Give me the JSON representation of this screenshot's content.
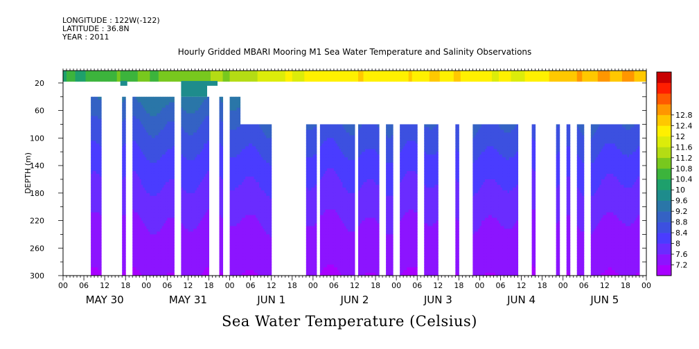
{
  "header": {
    "longitude": "LONGITUDE : 122W(-122)",
    "latitude": "LATITUDE : 36.8N",
    "year": "YEAR : 2011"
  },
  "footer": {
    "title": "Sea Water Temperature (Celsius)"
  },
  "chart_data": {
    "type": "heatmap",
    "title": "Hourly Gridded MBARI Mooring M1 Sea Water Temperature and Salinity Observations",
    "ylabel": "DEPTH (m)",
    "xlabel": "",
    "xlim_hours": [
      0,
      168
    ],
    "ylim": [
      300,
      0
    ],
    "y_ticks": [
      20,
      60,
      100,
      140,
      180,
      220,
      260,
      300
    ],
    "x_hour_ticks": [
      "00",
      "06",
      "12",
      "18",
      "00",
      "06",
      "12",
      "18",
      "00",
      "06",
      "12",
      "18",
      "00",
      "06",
      "12",
      "18",
      "00",
      "06",
      "12",
      "18",
      "00",
      "06",
      "12",
      "18",
      "00",
      "06",
      "12",
      "18",
      "00"
    ],
    "day_labels": [
      "MAY 30",
      "MAY 31",
      "JUN  1",
      "JUN  2",
      "JUN  3",
      "JUN  4",
      "JUN  5"
    ],
    "colorbar": {
      "levels": [
        7.2,
        7.6,
        8,
        8.4,
        8.8,
        9.2,
        9.6,
        10,
        10.4,
        10.8,
        11.2,
        11.6,
        12,
        12.4,
        12.8
      ],
      "labels": [
        "12.8",
        "12.4",
        "12",
        "11.6",
        "11.2",
        "10.8",
        "10.4",
        "10",
        "9.6",
        "9.2",
        "8.8",
        "8.4",
        "8",
        "7.6",
        "7.2"
      ],
      "colors": [
        "#a800ff",
        "#8c14ff",
        "#6a2cff",
        "#4a3cff",
        "#3c50e0",
        "#3462c4",
        "#2a76a8",
        "#1e8c8c",
        "#1ea06c",
        "#3cb43c",
        "#78c81e",
        "#b4dc14",
        "#dcec0a",
        "#fff000",
        "#ffc800",
        "#ff9600",
        "#ff5a00",
        "#ff1e00",
        "#c80000"
      ]
    },
    "surface": {
      "depth_m": 1,
      "temperature_hours": [
        0,
        12,
        24,
        36,
        48,
        60,
        72,
        84,
        96,
        108,
        120,
        132,
        144,
        156,
        168
      ],
      "temperature_c": [
        10.3,
        10.6,
        10.8,
        11.0,
        11.3,
        11.8,
        12.1,
        12.3,
        12.2,
        12.4,
        12.2,
        11.9,
        12.6,
        12.8,
        12.8
      ]
    },
    "profiles": {
      "depths_m": [
        20,
        40,
        60,
        80,
        100,
        140,
        180,
        220,
        260,
        300
      ],
      "mean_temperature_c": [
        10.0,
        9.4,
        9.1,
        8.8,
        8.6,
        8.2,
        7.9,
        7.6,
        7.4,
        7.2
      ]
    },
    "data_columns": [
      {
        "start_h": 8,
        "end_h": 11,
        "top_m": 40
      },
      {
        "start_h": 17,
        "end_h": 18,
        "top_m": 40
      },
      {
        "start_h": 20,
        "end_h": 32,
        "top_m": 40
      },
      {
        "start_h": 34,
        "end_h": 42,
        "top_m": 40
      },
      {
        "start_h": 45,
        "end_h": 46,
        "top_m": 40
      },
      {
        "start_h": 48,
        "end_h": 51,
        "top_m": 40
      },
      {
        "start_h": 51,
        "end_h": 60,
        "top_m": 80
      },
      {
        "start_h": 70,
        "end_h": 73,
        "top_m": 80
      },
      {
        "start_h": 74,
        "end_h": 84,
        "top_m": 80
      },
      {
        "start_h": 85,
        "end_h": 91,
        "top_m": 80
      },
      {
        "start_h": 93,
        "end_h": 95,
        "top_m": 80
      },
      {
        "start_h": 97,
        "end_h": 102,
        "top_m": 80
      },
      {
        "start_h": 104,
        "end_h": 108,
        "top_m": 80
      },
      {
        "start_h": 113,
        "end_h": 114,
        "top_m": 80
      },
      {
        "start_h": 118,
        "end_h": 131,
        "top_m": 80
      },
      {
        "start_h": 135,
        "end_h": 136,
        "top_m": 80
      },
      {
        "start_h": 142,
        "end_h": 143,
        "top_m": 80
      },
      {
        "start_h": 145,
        "end_h": 146,
        "top_m": 80
      },
      {
        "start_h": 148,
        "end_h": 150,
        "top_m": 80
      },
      {
        "start_h": 152,
        "end_h": 166,
        "top_m": 80
      },
      {
        "start_h": 162,
        "end_h": 166,
        "top_m": 80
      }
    ],
    "shallow_gaps": [
      {
        "start_h": 21,
        "end_h": 34,
        "bottom_m": 40
      },
      {
        "start_h": 42,
        "end_h": 45,
        "bottom_m": 20
      }
    ]
  }
}
